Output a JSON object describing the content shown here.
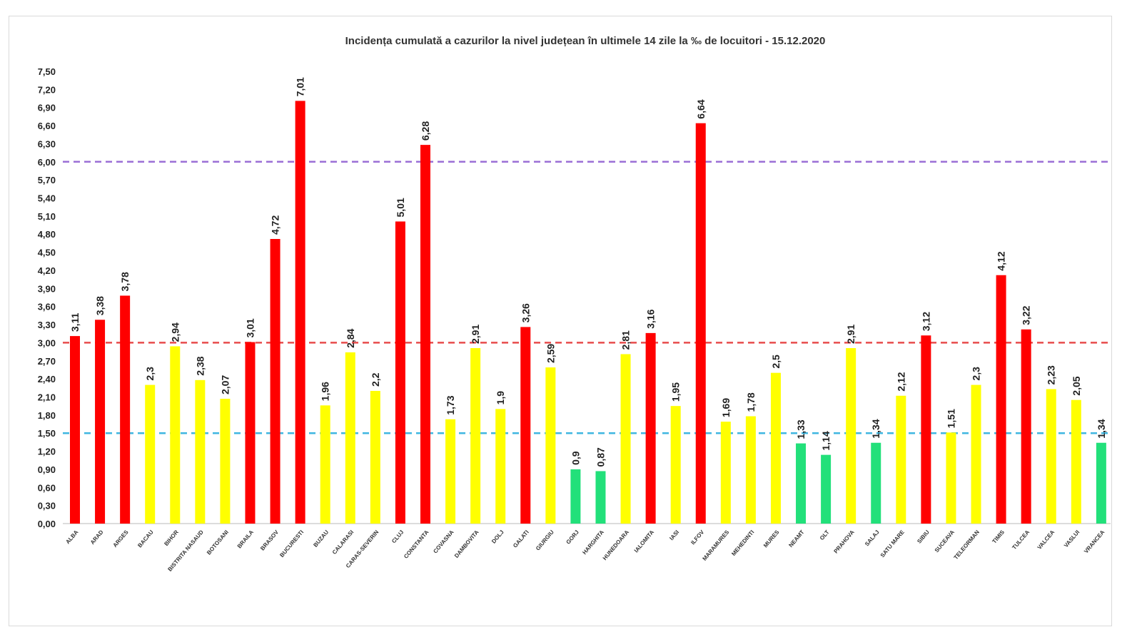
{
  "chart_data": {
    "type": "bar",
    "title": "Incidența cumulată a cazurilor la nivel județean în ultimele 14 zile   la ‰ de locuitori  - 15.12.2020",
    "xlabel": "",
    "ylabel": "",
    "ylim": [
      0,
      7.5
    ],
    "ytick_step": 0.3,
    "grid": false,
    "categories": [
      "ALBA",
      "ARAD",
      "ARGES",
      "BACAU",
      "BIHOR",
      "BISTRITA NASAUD",
      "BOTOSANI",
      "BRAILA",
      "BRASOV",
      "BUCURESTI",
      "BUZAU",
      "CALARASI",
      "CARAS-SEVERIN",
      "CLUJ",
      "CONSTANTA",
      "COVASNA",
      "DAMBOVITA",
      "DOLJ",
      "GALATI",
      "GIURGIU",
      "GORJ",
      "HARGHITA",
      "HUNEDOARA",
      "IALOMITA",
      "IASI",
      "ILFOV",
      "MARAMURES",
      "MEHEDINTI",
      "MURES",
      "NEAMT",
      "OLT",
      "PRAHOVA",
      "SALAJ",
      "SATU MARE",
      "SIBIU",
      "SUCEAVA",
      "TELEORMAN",
      "TIMIS",
      "TULCEA",
      "VALCEA",
      "VASLUI",
      "VRANCEA"
    ],
    "values": [
      3.11,
      3.38,
      3.78,
      2.3,
      2.94,
      2.38,
      2.07,
      3.01,
      4.72,
      7.01,
      1.96,
      2.84,
      2.2,
      5.01,
      6.28,
      1.73,
      2.91,
      1.9,
      3.26,
      2.59,
      0.9,
      0.87,
      2.81,
      3.16,
      1.95,
      6.64,
      1.69,
      1.78,
      2.5,
      1.33,
      1.14,
      2.91,
      1.34,
      2.12,
      3.12,
      1.51,
      2.3,
      4.12,
      3.22,
      2.23,
      2.05,
      1.34
    ],
    "thresholds": [
      {
        "value": 6.0,
        "color": "#9b6fd6"
      },
      {
        "value": 3.0,
        "color": "#e84c4c"
      },
      {
        "value": 1.5,
        "color": "#3fb6e0"
      }
    ],
    "colors": {
      "high": "#ff0000",
      "medium": "#ffff00",
      "low": "#22e07a"
    }
  }
}
